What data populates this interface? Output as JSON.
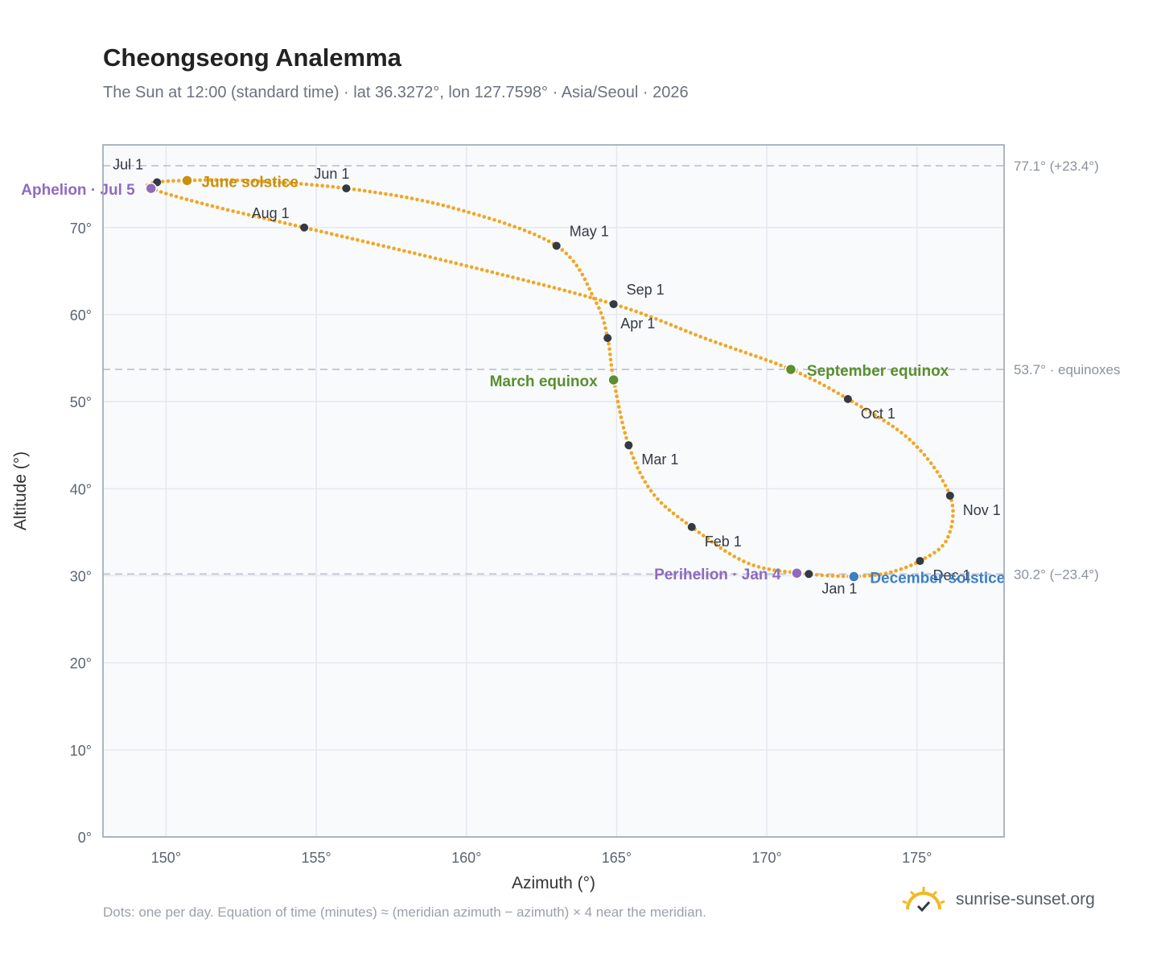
{
  "header": {
    "title": "Cheongseong Analemma",
    "subtitle": "The Sun at 12:00 (standard time) · lat 36.3272°, lon 127.7598° · Asia/Seoul · 2026"
  },
  "footer": {
    "note": "Dots: one per day. Equation of time (minutes) ≈ (meridian azimuth − azimuth) × 4 near the meridian.",
    "brand": "sunrise-sunset.org",
    "brand_icon": "sunrise-check-icon"
  },
  "chart_data": {
    "type": "scatter",
    "xlabel": "Azimuth (°)",
    "ylabel": "Altitude (°)",
    "xlim": [
      147.9,
      177.9
    ],
    "ylim": [
      0,
      79.5
    ],
    "x_ticks": [
      150,
      155,
      160,
      165,
      170,
      175
    ],
    "x_tick_labels": [
      "150°",
      "155°",
      "160°",
      "165°",
      "170°",
      "175°"
    ],
    "y_ticks": [
      0,
      10,
      20,
      30,
      40,
      50,
      60,
      70
    ],
    "y_tick_labels": [
      "0°",
      "10°",
      "20°",
      "30°",
      "40°",
      "50°",
      "60°",
      "70°"
    ],
    "grid": true,
    "curve_color": "#f2a623",
    "month_dot_color": "#333a44",
    "months": [
      {
        "label": "Jan 1",
        "x": 171.4,
        "y": 30.2
      },
      {
        "label": "Feb 1",
        "x": 167.5,
        "y": 35.6
      },
      {
        "label": "Mar 1",
        "x": 165.4,
        "y": 45.0
      },
      {
        "label": "Apr 1",
        "x": 164.7,
        "y": 57.3
      },
      {
        "label": "May 1",
        "x": 163.0,
        "y": 67.9
      },
      {
        "label": "Jun 1",
        "x": 156.0,
        "y": 74.5
      },
      {
        "label": "Jul 1",
        "x": 149.7,
        "y": 75.2
      },
      {
        "label": "Aug 1",
        "x": 154.6,
        "y": 70.0
      },
      {
        "label": "Sep 1",
        "x": 164.9,
        "y": 61.2
      },
      {
        "label": "Oct 1",
        "x": 172.7,
        "y": 50.3
      },
      {
        "label": "Nov 1",
        "x": 176.1,
        "y": 39.2
      },
      {
        "label": "Dec 1",
        "x": 175.1,
        "y": 31.7
      }
    ],
    "events": [
      {
        "label": "June solstice",
        "x": 150.7,
        "y": 75.4,
        "color": "#c9900e"
      },
      {
        "label": "Aphelion · Jul 5",
        "x": 149.5,
        "y": 74.5,
        "color": "#8e6bbf"
      },
      {
        "label": "March equinox",
        "x": 164.9,
        "y": 52.5,
        "color": "#5a8f2e"
      },
      {
        "label": "September equinox",
        "x": 170.8,
        "y": 53.7,
        "color": "#5a8f2e"
      },
      {
        "label": "Perihelion · Jan 4",
        "x": 171.0,
        "y": 30.3,
        "color": "#8e6bbf"
      },
      {
        "label": "December solstice",
        "x": 172.9,
        "y": 29.9,
        "color": "#3d7fc4"
      }
    ],
    "reference_lines": [
      {
        "y": 77.1,
        "label": "77.1° (+23.4°)"
      },
      {
        "y": 53.7,
        "label": "53.7° · equinoxes"
      },
      {
        "y": 30.2,
        "label": "30.2° (−23.4°)"
      }
    ],
    "path_knots": [
      [
        172.9,
        29.9
      ],
      [
        171.4,
        30.2
      ],
      [
        169.4,
        31.4
      ],
      [
        167.5,
        35.6
      ],
      [
        166.2,
        39.5
      ],
      [
        165.4,
        45.0
      ],
      [
        164.9,
        52.5
      ],
      [
        164.7,
        57.3
      ],
      [
        164.3,
        61.5
      ],
      [
        163.0,
        67.9
      ],
      [
        159.5,
        72.3
      ],
      [
        156.0,
        74.5
      ],
      [
        152.6,
        75.4
      ],
      [
        150.7,
        75.4
      ],
      [
        149.7,
        75.2
      ],
      [
        149.5,
        74.5
      ],
      [
        151.5,
        72.5
      ],
      [
        154.6,
        70.0
      ],
      [
        160.0,
        65.6
      ],
      [
        164.9,
        61.2
      ],
      [
        168.0,
        57.2
      ],
      [
        170.8,
        53.7
      ],
      [
        172.7,
        50.3
      ],
      [
        174.8,
        45.5
      ],
      [
        176.1,
        39.2
      ],
      [
        176.0,
        34.2
      ],
      [
        175.1,
        31.7
      ],
      [
        174.0,
        30.3
      ],
      [
        172.9,
        29.9
      ]
    ]
  }
}
